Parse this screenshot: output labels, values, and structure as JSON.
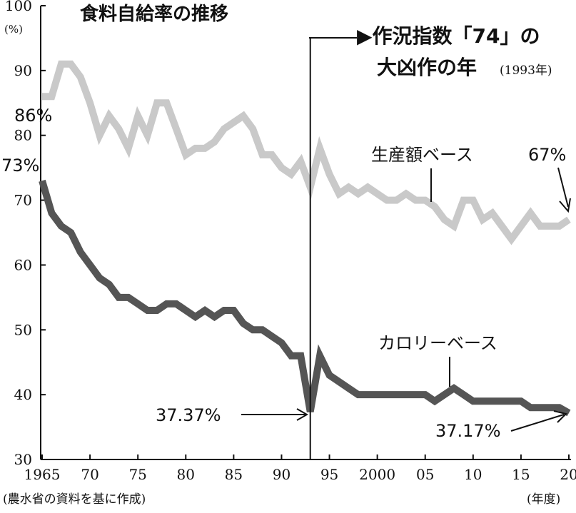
{
  "chart_data": {
    "type": "line",
    "title": "食料自給率の推移",
    "yunit": "(%)",
    "xunit": "(年度)",
    "source": "(農水省の資料を基に作成)",
    "xlim": [
      1965,
      2020
    ],
    "ylim": [
      30,
      100
    ],
    "yticks": [
      30,
      40,
      50,
      60,
      70,
      80,
      90,
      100
    ],
    "xticks": [
      {
        "x": 1965,
        "label": "1965"
      },
      {
        "x": 1970,
        "label": "70"
      },
      {
        "x": 1975,
        "label": "75"
      },
      {
        "x": 1980,
        "label": "80"
      },
      {
        "x": 1985,
        "label": "85"
      },
      {
        "x": 1990,
        "label": "90"
      },
      {
        "x": 1995,
        "label": "95"
      },
      {
        "x": 2000,
        "label": "2000"
      },
      {
        "x": 2005,
        "label": "05"
      },
      {
        "x": 2010,
        "label": "10"
      },
      {
        "x": 2015,
        "label": "15"
      },
      {
        "x": 2020,
        "label": "20"
      }
    ],
    "series": [
      {
        "name": "生産額ベース",
        "color": "#c9c9c9",
        "x": [
          1965,
          1966,
          1967,
          1968,
          1969,
          1970,
          1971,
          1972,
          1973,
          1974,
          1975,
          1976,
          1977,
          1978,
          1979,
          1980,
          1981,
          1982,
          1983,
          1984,
          1985,
          1986,
          1987,
          1988,
          1989,
          1990,
          1991,
          1992,
          1993,
          1994,
          1995,
          1996,
          1997,
          1998,
          1999,
          2000,
          2001,
          2002,
          2003,
          2004,
          2005,
          2006,
          2007,
          2008,
          2009,
          2010,
          2011,
          2012,
          2013,
          2014,
          2015,
          2016,
          2017,
          2018,
          2019,
          2020
        ],
        "values": [
          86,
          86,
          91,
          91,
          89,
          85,
          80,
          83,
          81,
          78,
          83,
          80,
          85,
          85,
          81,
          77,
          78,
          78,
          79,
          81,
          82,
          83,
          81,
          77,
          77,
          75,
          74,
          76,
          72,
          78,
          74,
          71,
          72,
          71,
          72,
          71,
          70,
          70,
          71,
          70,
          70,
          69,
          67,
          66,
          70,
          70,
          67,
          68,
          66,
          64,
          66,
          68,
          66,
          66,
          66,
          67
        ]
      },
      {
        "name": "カロリーベース",
        "color": "#555555",
        "x": [
          1965,
          1966,
          1967,
          1968,
          1969,
          1970,
          1971,
          1972,
          1973,
          1974,
          1975,
          1976,
          1977,
          1978,
          1979,
          1980,
          1981,
          1982,
          1983,
          1984,
          1985,
          1986,
          1987,
          1988,
          1989,
          1990,
          1991,
          1992,
          1993,
          1994,
          1995,
          1996,
          1997,
          1998,
          1999,
          2000,
          2001,
          2002,
          2003,
          2004,
          2005,
          2006,
          2007,
          2008,
          2009,
          2010,
          2011,
          2012,
          2013,
          2014,
          2015,
          2016,
          2017,
          2018,
          2019,
          2020
        ],
        "values": [
          73,
          68,
          66,
          65,
          62,
          60,
          58,
          57,
          55,
          55,
          54,
          53,
          53,
          54,
          54,
          53,
          52,
          53,
          52,
          53,
          53,
          51,
          50,
          50,
          49,
          48,
          46,
          46,
          37.37,
          46,
          43,
          42,
          41,
          40,
          40,
          40,
          40,
          40,
          40,
          40,
          40,
          39,
          40,
          41,
          40,
          39,
          39,
          39,
          39,
          39,
          39,
          38,
          38,
          38,
          38,
          37.17
        ]
      }
    ],
    "annotations": {
      "event_line_x": 1993,
      "event_text_line1": "▶作況指数「74」の",
      "event_text_line2": "大凶作の年",
      "event_year": "(1993年)",
      "label_start_production": "86%",
      "label_start_calorie": "73%",
      "label_end_production": "67%",
      "label_min_calorie": "37.37%",
      "label_end_calorie": "37.17%"
    }
  }
}
